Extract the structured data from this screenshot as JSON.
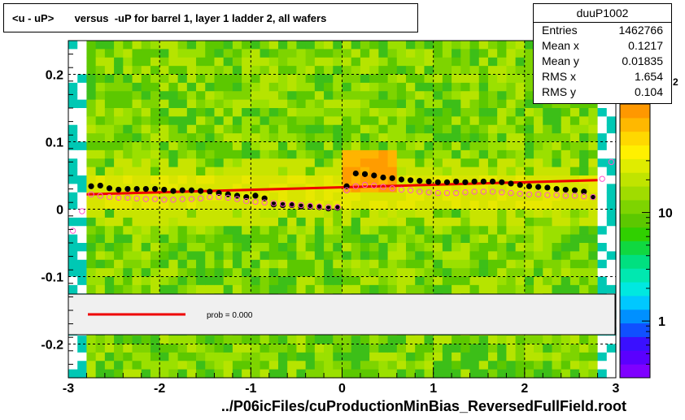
{
  "header": {
    "title": "<u - uP>       versus  -uP for barrel 1, layer 1 ladder 2, all wafers"
  },
  "stats": {
    "name": "duuP1002",
    "rows": [
      {
        "label": "Entries",
        "value": "1462766"
      },
      {
        "label": "Mean x",
        "value": "0.1217"
      },
      {
        "label": "Mean y",
        "value": "0.01835"
      },
      {
        "label": "RMS x",
        "value": "1.654"
      },
      {
        "label": "RMS y",
        "value": "0.104"
      }
    ]
  },
  "fit_legend": {
    "text": "prob = 0.000",
    "line_color": "#ee0000"
  },
  "footer": {
    "filename": "../P06icFiles/cuProductionMinBias_ReversedFullField.root"
  },
  "chart_data": {
    "type": "heatmap",
    "xlim": [
      -3,
      3
    ],
    "ylim": [
      -0.25,
      0.25
    ],
    "x_ticks": [
      "-3",
      "-2",
      "-1",
      "0",
      "1",
      "2",
      "3"
    ],
    "y_ticks": [
      "0.2",
      "0.1",
      "0",
      "-0.1",
      "-0.2"
    ],
    "y_tick_values": [
      0.2,
      0.1,
      0,
      -0.1,
      -0.2
    ],
    "colorbar": {
      "log": true,
      "ticks": [
        "1",
        "10"
      ],
      "tick_values": [
        1,
        10
      ],
      "partial_label": "2"
    },
    "grid": true,
    "series": [
      {
        "marker": "filled-circle",
        "color": "#000000",
        "x": [
          -2.75,
          -2.65,
          -2.55,
          -2.45,
          -2.35,
          -2.25,
          -2.15,
          -2.05,
          -1.95,
          -1.85,
          -1.75,
          -1.65,
          -1.55,
          -1.45,
          -1.35,
          -1.25,
          -1.15,
          -1.05,
          -0.95,
          -0.85,
          -0.75,
          -0.65,
          -0.55,
          -0.45,
          -0.35,
          -0.25,
          -0.15,
          -0.05,
          0.05,
          0.15,
          0.25,
          0.35,
          0.45,
          0.55,
          0.65,
          0.75,
          0.85,
          0.95,
          1.05,
          1.15,
          1.25,
          1.35,
          1.45,
          1.55,
          1.65,
          1.75,
          1.85,
          1.95,
          2.05,
          2.15,
          2.25,
          2.35,
          2.45,
          2.55,
          2.65,
          2.75
        ],
        "y": [
          0.034,
          0.035,
          0.031,
          0.029,
          0.03,
          0.03,
          0.03,
          0.03,
          0.029,
          0.027,
          0.028,
          0.028,
          0.027,
          0.026,
          0.024,
          0.022,
          0.02,
          0.018,
          0.02,
          0.016,
          0.007,
          0.006,
          0.006,
          0.004,
          0.004,
          0.003,
          0.001,
          0.002,
          0.034,
          0.053,
          0.052,
          0.05,
          0.047,
          0.046,
          0.044,
          0.043,
          0.042,
          0.041,
          0.04,
          0.04,
          0.041,
          0.04,
          0.041,
          0.041,
          0.041,
          0.04,
          0.038,
          0.036,
          0.034,
          0.033,
          0.032,
          0.03,
          0.029,
          0.028,
          0.026,
          0.018
        ]
      },
      {
        "marker": "open-circle",
        "color": "#ff55cc",
        "x": [
          -2.95,
          -2.85,
          -2.75,
          -2.65,
          -2.55,
          -2.45,
          -2.35,
          -2.25,
          -2.15,
          -2.05,
          -1.95,
          -1.85,
          -1.75,
          -1.65,
          -1.55,
          -1.45,
          -1.35,
          -1.25,
          -1.15,
          -1.05,
          -0.95,
          -0.85,
          -0.75,
          -0.65,
          -0.55,
          -0.45,
          -0.35,
          -0.25,
          -0.15,
          -0.05,
          0.05,
          0.15,
          0.25,
          0.35,
          0.45,
          0.55,
          0.65,
          0.75,
          0.85,
          0.95,
          1.05,
          1.15,
          1.25,
          1.35,
          1.45,
          1.55,
          1.65,
          1.75,
          1.85,
          1.95,
          2.05,
          2.15,
          2.25,
          2.35,
          2.45,
          2.55,
          2.65,
          2.75,
          2.85,
          2.95
        ],
        "y": [
          -0.032,
          -0.003,
          0.022,
          0.02,
          0.018,
          0.017,
          0.017,
          0.016,
          0.015,
          0.015,
          0.014,
          0.014,
          0.015,
          0.015,
          0.016,
          0.018,
          0.018,
          0.017,
          0.015,
          0.012,
          0.011,
          0.01,
          0.009,
          0.008,
          0.007,
          0.006,
          0.005,
          0.004,
          0.003,
          0.003,
          0.028,
          0.034,
          0.036,
          0.035,
          0.033,
          0.031,
          0.029,
          0.028,
          0.026,
          0.025,
          0.024,
          0.024,
          0.024,
          0.025,
          0.026,
          0.026,
          0.026,
          0.025,
          0.024,
          0.023,
          0.022,
          0.022,
          0.021,
          0.021,
          0.02,
          0.02,
          0.019,
          0.018,
          0.045,
          0.07
        ]
      }
    ],
    "fit_line": {
      "color": "#ee0000",
      "x": [
        -2.8,
        2.8
      ],
      "y": [
        0.022,
        0.043
      ]
    }
  }
}
